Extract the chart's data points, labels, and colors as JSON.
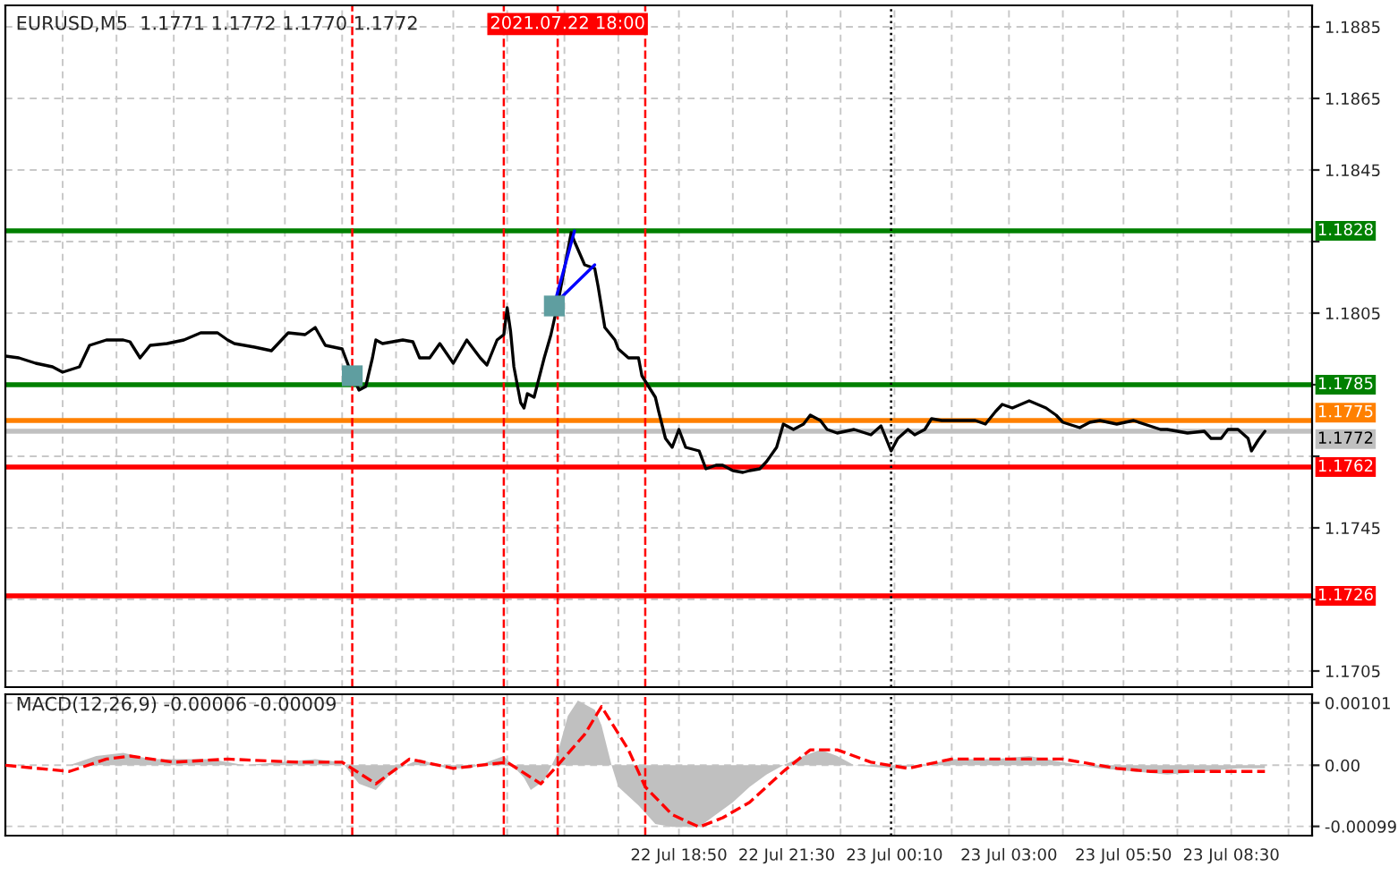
{
  "chart_data": [
    {
      "type": "line",
      "title": "EURUSD,M5  1.1771 1.1772 1.1770 1.1772",
      "x": [
        "2021-07-22T02:10",
        "2021-07-22T02:30",
        "2021-07-22T02:55",
        "2021-07-22T03:20",
        "2021-07-22T03:35",
        "2021-07-22T04:00",
        "2021-07-22T04:15",
        "2021-07-22T04:40",
        "2021-07-22T05:05",
        "2021-07-22T05:15",
        "2021-07-22T05:30",
        "2021-07-22T05:45",
        "2021-07-22T06:10",
        "2021-07-22T06:35",
        "2021-07-22T07:00",
        "2021-07-22T07:25",
        "2021-07-22T07:40",
        "2021-07-22T07:50",
        "2021-07-22T08:20",
        "2021-07-22T08:45",
        "2021-07-22T09:10",
        "2021-07-22T09:35",
        "2021-07-22T09:50",
        "2021-07-22T10:05",
        "2021-07-22T10:30",
        "2021-07-22T10:40",
        "2021-07-22T10:55",
        "2021-07-22T11:05",
        "2021-07-22T11:15",
        "2021-07-22T11:20",
        "2021-07-22T11:30",
        "2021-07-22T12:00",
        "2021-07-22T12:15",
        "2021-07-22T12:25",
        "2021-07-22T12:40",
        "2021-07-22T12:55",
        "2021-07-22T13:15",
        "2021-07-22T13:35",
        "2021-07-22T13:55",
        "2021-07-22T14:05",
        "2021-07-22T14:20",
        "2021-07-22T14:30",
        "2021-07-22T14:35",
        "2021-07-22T14:40",
        "2021-07-22T14:45",
        "2021-07-22T14:55",
        "2021-07-22T15:00",
        "2021-07-22T15:05",
        "2021-07-22T15:15",
        "2021-07-22T15:30",
        "2021-07-22T15:40",
        "2021-07-22T15:50",
        "2021-07-22T16:00",
        "2021-07-22T16:10",
        "2021-07-22T16:15",
        "2021-07-22T16:30",
        "2021-07-22T16:45",
        "2021-07-22T16:50",
        "2021-07-22T17:00",
        "2021-07-22T17:15",
        "2021-07-22T17:20",
        "2021-07-22T17:35",
        "2021-07-22T17:50",
        "2021-07-22T17:55",
        "2021-07-22T18:05",
        "2021-07-22T18:15",
        "2021-07-22T18:20",
        "2021-07-22T18:30",
        "2021-07-22T18:40",
        "2021-07-22T18:50",
        "2021-07-22T19:00",
        "2021-07-22T19:20",
        "2021-07-22T19:30",
        "2021-07-22T19:45",
        "2021-07-22T19:55",
        "2021-07-22T20:10",
        "2021-07-22T20:25",
        "2021-07-22T20:35",
        "2021-07-22T20:50",
        "2021-07-22T21:00",
        "2021-07-22T21:15",
        "2021-07-22T21:25",
        "2021-07-22T21:40",
        "2021-07-22T21:55",
        "2021-07-22T22:05",
        "2021-07-22T22:20",
        "2021-07-22T22:30",
        "2021-07-22T22:45",
        "2021-07-22T23:10",
        "2021-07-22T23:35",
        "2021-07-22T23:50",
        "2021-07-23T00:05",
        "2021-07-23T00:15",
        "2021-07-23T00:30",
        "2021-07-23T00:40",
        "2021-07-23T00:55",
        "2021-07-23T01:05",
        "2021-07-23T01:20",
        "2021-07-23T01:45",
        "2021-07-23T02:10",
        "2021-07-23T02:25",
        "2021-07-23T02:40",
        "2021-07-23T02:50",
        "2021-07-23T03:05",
        "2021-07-23T03:30",
        "2021-07-23T03:55",
        "2021-07-23T04:10",
        "2021-07-23T04:20",
        "2021-07-23T04:45",
        "2021-07-23T05:00",
        "2021-07-23T05:15",
        "2021-07-23T05:40",
        "2021-07-23T06:05",
        "2021-07-23T06:45",
        "2021-07-23T06:55",
        "2021-07-23T07:25",
        "2021-07-23T07:50",
        "2021-07-23T08:00",
        "2021-07-23T08:15",
        "2021-07-23T08:25",
        "2021-07-23T08:40",
        "2021-07-23T08:55",
        "2021-07-23T09:00",
        "2021-07-23T09:10",
        "2021-07-23T09:20"
      ],
      "series": [
        {
          "color": "#000000",
          "values": [
            1.1793,
            1.17925,
            1.1791,
            1.179,
            1.17885,
            1.179,
            1.1796,
            1.17975,
            1.17975,
            1.1797,
            1.17925,
            1.1796,
            1.17965,
            1.17975,
            1.17995,
            1.17995,
            1.17975,
            1.17965,
            1.17955,
            1.17945,
            1.17995,
            1.1799,
            1.1801,
            1.1796,
            1.1795,
            1.179,
            1.17835,
            1.17845,
            1.17925,
            1.17975,
            1.17965,
            1.17975,
            1.1797,
            1.17925,
            1.17925,
            1.17965,
            1.1791,
            1.17975,
            1.17925,
            1.17905,
            1.17975,
            1.1799,
            1.18065,
            1.18,
            1.179,
            1.178,
            1.17785,
            1.17825,
            1.17815,
            1.17925,
            1.1799,
            1.18075,
            1.18175,
            1.18275,
            1.1825,
            1.18185,
            1.18175,
            1.18125,
            1.1801,
            1.17975,
            1.1795,
            1.17925,
            1.17925,
            1.17875,
            1.17845,
            1.17815,
            1.17775,
            1.177,
            1.17675,
            1.17725,
            1.17675,
            1.17665,
            1.17615,
            1.17625,
            1.17625,
            1.1761,
            1.17605,
            1.1761,
            1.17615,
            1.17635,
            1.17675,
            1.1774,
            1.17725,
            1.1774,
            1.17765,
            1.1775,
            1.17725,
            1.17715,
            1.17725,
            1.1771,
            1.17735,
            1.17665,
            1.177,
            1.17725,
            1.1771,
            1.17725,
            1.17755,
            1.1775,
            1.1775,
            1.1775,
            1.1774,
            1.17775,
            1.17795,
            1.17785,
            1.17805,
            1.17785,
            1.17765,
            1.17745,
            1.1773,
            1.17745,
            1.1775,
            1.1774,
            1.1775,
            1.17725,
            1.17725,
            1.17715,
            1.1772,
            1.177,
            1.177,
            1.17725,
            1.17725,
            1.177,
            1.17665,
            1.17695,
            1.1772
          ]
        },
        {
          "color": "#0000ff",
          "x": [
            "2021-07-22T15:45",
            "2021-07-22T16:15"
          ],
          "values": [
            1.18075,
            1.1828
          ]
        },
        {
          "color": "#0000ff",
          "x": [
            "2021-07-22T15:45",
            "2021-07-22T16:45"
          ],
          "values": [
            1.18075,
            1.18185
          ]
        },
        {
          "type": "scatter",
          "marker": "square",
          "color": "#5f9ea0",
          "x": [
            "2021-07-22T10:45",
            "2021-07-22T15:45"
          ],
          "values": [
            1.17875,
            1.1807
          ]
        }
      ],
      "xlim": [
        "2021-07-22T02:10",
        "2021-07-23T10:30"
      ],
      "xticks": [
        {
          "value": "2021-07-22T03:35",
          "label": null
        },
        {
          "value": "2021-07-22T04:55",
          "label": null
        },
        {
          "value": "2021-07-22T06:20",
          "label": null
        },
        {
          "value": "2021-07-22T07:40",
          "label": null
        },
        {
          "value": "2021-07-22T09:05",
          "label": null
        },
        {
          "value": "2021-07-22T10:30",
          "label": null
        },
        {
          "value": "2021-07-22T11:50",
          "label": null
        },
        {
          "value": "2021-07-22T13:15",
          "label": null
        },
        {
          "value": "2021-07-22T14:35",
          "label": null
        },
        {
          "value": "2021-07-22T16:00",
          "label": null
        },
        {
          "value": "2021-07-22T17:20",
          "label": null
        },
        {
          "value": "2021-07-22T18:50",
          "label": null
        },
        {
          "value": "2021-07-22T20:10",
          "label": null
        },
        {
          "value": "2021-07-22T21:30",
          "label": null
        },
        {
          "value": "2021-07-22T22:50",
          "label": null
        },
        {
          "value": "2021-07-23T00:10",
          "label": null
        },
        {
          "value": "2021-07-23T01:35",
          "label": null
        },
        {
          "value": "2021-07-23T03:00",
          "label": null
        },
        {
          "value": "2021-07-23T04:20",
          "label": null
        },
        {
          "value": "2021-07-23T05:50",
          "label": null
        },
        {
          "value": "2021-07-23T07:10",
          "label": null
        },
        {
          "value": "2021-07-23T08:30",
          "label": null
        },
        {
          "value": "2021-07-23T09:55",
          "label": null
        }
      ],
      "ylim": [
        1.17005,
        1.1891
      ],
      "yticks": [
        1.1705,
        {
          "value": 1.1725,
          "label": null
        },
        1.1745,
        {
          "value": 1.1765,
          "label": null
        },
        {
          "value": 1.1785,
          "label": null
        },
        1.1805,
        {
          "value": 1.1825,
          "label": null
        },
        1.1845,
        1.1865,
        1.1885
      ],
      "tick_labels": "y",
      "grid": true,
      "ref_lines": [
        {
          "axis": "y",
          "value": 1.1828,
          "label": "1.1828",
          "color": "#008000"
        },
        {
          "axis": "y",
          "value": 1.1785,
          "label": "1.1785",
          "color": "#008000"
        },
        {
          "axis": "y",
          "value": 1.1775,
          "label": "1.1775",
          "color": "#ff8000"
        },
        {
          "axis": "y",
          "value": 1.1772,
          "label": "1.1772",
          "color": "#c0c0c0"
        },
        {
          "axis": "y",
          "value": 1.1762,
          "label": "1.1762",
          "color": "#ff0000"
        },
        {
          "axis": "y",
          "value": 1.1726,
          "label": "1.1726",
          "color": "#ff0000"
        },
        {
          "axis": "x",
          "value": "2021-07-22T10:45",
          "color": "#ff0000",
          "line_style": "dashed"
        },
        {
          "axis": "x",
          "value": "2021-07-22T14:30",
          "color": "#ff0000",
          "line_style": "dashed"
        },
        {
          "axis": "x",
          "value": "2021-07-22T15:50",
          "color": "#ff0000",
          "line_style": "dashed"
        },
        {
          "axis": "x",
          "value": "2021-07-22T18:00",
          "label": "2021.07.22 18:00",
          "color": "#ff0000",
          "line_style": "dashed"
        },
        {
          "axis": "x",
          "value": "2021-07-23T00:05",
          "color": "#000000",
          "line_style": "dotted"
        }
      ]
    },
    {
      "type": "area",
      "title": "MACD(12,26,9) -0.00006 -0.00009",
      "series": [
        {
          "type": "area",
          "color": "#c0c0c0",
          "x": [
            "2021-07-22T02:10",
            "2021-07-22T03:45",
            "2021-07-22T04:25",
            "2021-07-22T05:05",
            "2021-07-22T05:45",
            "2021-07-22T06:20",
            "2021-07-22T07:15",
            "2021-07-22T08:05",
            "2021-07-22T08:55",
            "2021-07-22T09:50",
            "2021-07-22T10:30",
            "2021-07-22T10:55",
            "2021-07-22T11:20",
            "2021-07-22T11:45",
            "2021-07-22T12:25",
            "2021-07-22T13:05",
            "2021-07-22T13:40",
            "2021-07-22T14:30",
            "2021-07-22T15:00",
            "2021-07-22T15:10",
            "2021-07-22T15:30",
            "2021-07-22T15:50",
            "2021-07-22T16:05",
            "2021-07-22T16:20",
            "2021-07-22T16:45",
            "2021-07-22T16:55",
            "2021-07-22T17:10",
            "2021-07-22T17:20",
            "2021-07-22T17:50",
            "2021-07-22T18:15",
            "2021-07-22T18:40",
            "2021-07-22T19:20",
            "2021-07-22T19:45",
            "2021-07-22T20:10",
            "2021-07-22T20:35",
            "2021-07-22T21:00",
            "2021-07-22T21:25",
            "2021-07-22T21:55",
            "2021-07-22T22:20",
            "2021-07-22T22:45",
            "2021-07-22T23:10",
            "2021-07-23T00:05",
            "2021-07-23T00:55",
            "2021-07-23T01:35",
            "2021-07-23T02:40",
            "2021-07-23T03:30",
            "2021-07-23T04:20",
            "2021-07-23T05:15",
            "2021-07-23T06:05",
            "2021-07-23T06:55",
            "2021-07-23T07:50",
            "2021-07-23T08:40",
            "2021-07-23T09:20"
          ],
          "values": [
            0,
            0,
            0.00015,
            0.0002,
            0.0001,
            0.0001,
            0.0001,
            0,
            5e-05,
            0.0001,
            5e-05,
            -0.0003,
            -0.0004,
            -0.0001,
            0.0001,
            -5e-05,
            -5e-05,
            0.00015,
            -0.0002,
            -0.0004,
            -0.00025,
            0.0002,
            0.0008,
            0.00105,
            0.0009,
            0.00065,
            0,
            -0.00035,
            -0.00065,
            -0.00095,
            -0.001,
            -0.001,
            -0.0008,
            -0.0006,
            -0.00035,
            -0.00015,
            0,
            0.00015,
            0.00025,
            0.00015,
            0,
            -5e-05,
            0,
            0.0001,
            0.0001,
            0.00015,
            5e-05,
            -5e-05,
            -0.0001,
            -0.00015,
            -0.0001,
            -5e-05,
            -5e-05
          ]
        },
        {
          "type": "line",
          "color": "#ff0000",
          "line_style": "dashed",
          "x": [
            "2021-07-22T02:10",
            "2021-07-22T03:45",
            "2021-07-22T04:40",
            "2021-07-22T05:15",
            "2021-07-22T06:20",
            "2021-07-22T07:40",
            "2021-07-22T09:25",
            "2021-07-22T10:30",
            "2021-07-22T11:20",
            "2021-07-22T12:10",
            "2021-07-22T13:15",
            "2021-07-22T14:35",
            "2021-07-22T15:25",
            "2021-07-22T15:50",
            "2021-07-22T16:30",
            "2021-07-22T16:55",
            "2021-07-22T17:35",
            "2021-07-22T18:00",
            "2021-07-22T18:40",
            "2021-07-22T19:20",
            "2021-07-22T19:55",
            "2021-07-22T20:35",
            "2021-07-22T21:25",
            "2021-07-22T22:05",
            "2021-07-22T22:45",
            "2021-07-22T23:35",
            "2021-07-23T00:30",
            "2021-07-23T01:35",
            "2021-07-23T03:05",
            "2021-07-23T04:20",
            "2021-07-23T05:40",
            "2021-07-23T06:30",
            "2021-07-23T07:50",
            "2021-07-23T09:20"
          ],
          "values": [
            0,
            -0.0001,
            0.0001,
            0.00015,
            5e-05,
            0.0001,
            5e-05,
            5e-05,
            -0.0003,
            0.0001,
            -5e-05,
            5e-05,
            -0.0003,
            0,
            0.0005,
            0.00095,
            0.00025,
            -0.00035,
            -0.0008,
            -0.001,
            -0.00085,
            -0.0006,
            -0.0001,
            0.00025,
            0.00025,
            5e-05,
            -5e-05,
            0.0001,
            0.0001,
            0.0001,
            -5e-05,
            -0.0001,
            -0.0001,
            -0.0001
          ]
        }
      ],
      "xlim": [
        "2021-07-22T02:10",
        "2021-07-23T10:30"
      ],
      "xticks": [
        {
          "value": "2021-07-22T03:35",
          "label": null
        },
        {
          "value": "2021-07-22T04:55",
          "label": null
        },
        {
          "value": "2021-07-22T06:20",
          "label": null
        },
        {
          "value": "2021-07-22T07:40",
          "label": null
        },
        {
          "value": "2021-07-22T09:05",
          "label": null
        },
        {
          "value": "2021-07-22T10:30",
          "label": null
        },
        {
          "value": "2021-07-22T11:50",
          "label": null
        },
        {
          "value": "2021-07-22T13:15",
          "label": null
        },
        {
          "value": "2021-07-22T14:35",
          "label": null
        },
        {
          "value": "2021-07-22T16:00",
          "label": null
        },
        {
          "value": "2021-07-22T17:20",
          "label": null
        },
        {
          "value": "2021-07-22T18:50",
          "label": "22 Jul 18:50"
        },
        {
          "value": "2021-07-22T20:10",
          "label": null
        },
        {
          "value": "2021-07-22T21:30",
          "label": "22 Jul 21:30"
        },
        {
          "value": "2021-07-22T22:50",
          "label": null
        },
        {
          "value": "2021-07-23T00:10",
          "label": "23 Jul 00:10"
        },
        {
          "value": "2021-07-23T01:35",
          "label": null
        },
        {
          "value": "2021-07-23T03:00",
          "label": "23 Jul 03:00"
        },
        {
          "value": "2021-07-23T04:20",
          "label": null
        },
        {
          "value": "2021-07-23T05:50",
          "label": "23 Jul 05:50"
        },
        {
          "value": "2021-07-23T07:10",
          "label": null
        },
        {
          "value": "2021-07-23T08:30",
          "label": "23 Jul 08:30"
        },
        {
          "value": "2021-07-23T09:55",
          "label": null
        }
      ],
      "ylim": [
        -0.00114,
        0.00115
      ],
      "yticks": [
        -0.00099,
        {
          "value": 0,
          "label": "0.00"
        },
        0.00101
      ],
      "grid": true,
      "ref_lines": [
        {
          "axis": "x",
          "value": "2021-07-22T10:45",
          "color": "#ff0000",
          "line_style": "dashed"
        },
        {
          "axis": "x",
          "value": "2021-07-22T14:30",
          "color": "#ff0000",
          "line_style": "dashed"
        },
        {
          "axis": "x",
          "value": "2021-07-22T15:50",
          "color": "#ff0000",
          "line_style": "dashed"
        },
        {
          "axis": "x",
          "value": "2021-07-22T18:00",
          "color": "#ff0000",
          "line_style": "dashed"
        },
        {
          "axis": "x",
          "value": "2021-07-23T00:05",
          "color": "#000000",
          "line_style": "dotted"
        }
      ]
    }
  ]
}
